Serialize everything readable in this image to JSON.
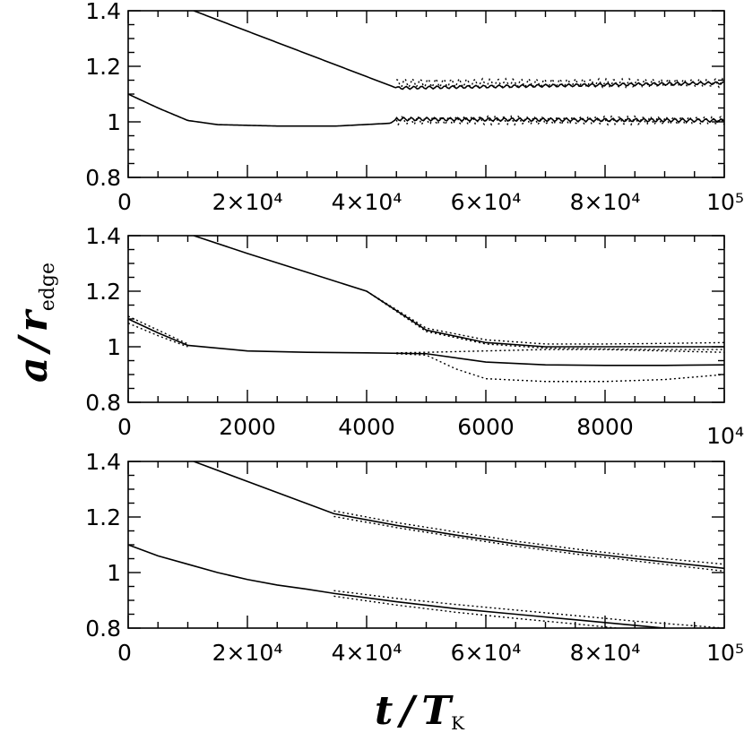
{
  "figure": {
    "ylabel_main": "a",
    "ylabel_slash": "/",
    "ylabel_var": "r",
    "ylabel_sub": "edge",
    "xlabel_main": "t",
    "xlabel_slash": "/",
    "xlabel_var": "T",
    "xlabel_sub": "K"
  },
  "chart_data": [
    {
      "type": "line",
      "xlim": [
        0,
        100000
      ],
      "ylim": [
        0.8,
        1.4
      ],
      "x_ticks": [
        {
          "value": 0,
          "label": "0"
        },
        {
          "value": 20000,
          "label": "2×10⁴"
        },
        {
          "value": 40000,
          "label": "4×10⁴"
        },
        {
          "value": 60000,
          "label": "6×10⁴"
        },
        {
          "value": 80000,
          "label": "8×10⁴"
        },
        {
          "value": 100000,
          "label": "10⁵"
        }
      ],
      "y_ticks": [
        {
          "value": 0.8,
          "label": "0.8"
        },
        {
          "value": 1.0,
          "label": "1"
        },
        {
          "value": 1.2,
          "label": "1.2"
        },
        {
          "value": 1.4,
          "label": "1.4"
        }
      ],
      "series": [
        {
          "style": "solid",
          "x": [
            11000,
            45000,
            100000
          ],
          "y": [
            1.4,
            1.122,
            1.14
          ],
          "oscillate_from": 45000,
          "amplitude": 0.005
        },
        {
          "style": "dotted",
          "x": [
            45000,
            100000
          ],
          "y": [
            1.14,
            1.14
          ],
          "oscillate_from": 45000,
          "amplitude": 0.015
        },
        {
          "style": "solid",
          "x": [
            0,
            5000,
            10000,
            15000,
            25000,
            35000,
            44000,
            45000,
            100000
          ],
          "y": [
            1.1,
            1.05,
            1.005,
            0.99,
            0.985,
            0.985,
            0.995,
            1.01,
            1.005
          ],
          "oscillate_from": 45000,
          "amplitude": 0.006
        },
        {
          "style": "dotted",
          "x": [
            45000,
            100000
          ],
          "y": [
            1.005,
            1.005
          ],
          "oscillate_from": 45000,
          "amplitude": 0.015
        }
      ]
    },
    {
      "type": "line",
      "xlim": [
        0,
        10000
      ],
      "ylim": [
        0.8,
        1.4
      ],
      "x_ticks": [
        {
          "value": 0,
          "label": "0"
        },
        {
          "value": 2000,
          "label": "2000"
        },
        {
          "value": 4000,
          "label": "4000"
        },
        {
          "value": 6000,
          "label": "6000"
        },
        {
          "value": 8000,
          "label": "8000"
        }
      ],
      "x_axis_multiplier": "10⁴",
      "y_ticks": [
        {
          "value": 0.8,
          "label": "0.8"
        },
        {
          "value": 1.0,
          "label": "1"
        },
        {
          "value": 1.2,
          "label": "1.2"
        },
        {
          "value": 1.4,
          "label": "1.4"
        }
      ],
      "series": [
        {
          "style": "solid",
          "x": [
            1100,
            2000,
            3000,
            4000,
            5000,
            6000,
            7000,
            8000,
            9000,
            10000
          ],
          "y": [
            1.4,
            1.336,
            1.268,
            1.2,
            1.06,
            1.015,
            1.0,
            1.0,
            1.0,
            1.0
          ]
        },
        {
          "style": "dotted",
          "x": [
            4000,
            5000,
            6000,
            7000,
            8000,
            9000,
            10000
          ],
          "y": [
            1.2,
            1.067,
            1.025,
            1.01,
            1.01,
            1.012,
            1.015
          ]
        },
        {
          "style": "dotted",
          "x": [
            4000,
            5000,
            6000,
            7000,
            8000,
            9000,
            10000
          ],
          "y": [
            1.2,
            1.055,
            1.01,
            0.995,
            0.992,
            0.99,
            0.99
          ]
        },
        {
          "style": "solid",
          "x": [
            0,
            500,
            1000,
            2000,
            3000,
            4000,
            5000,
            6000,
            7000,
            8000,
            9000,
            10000
          ],
          "y": [
            1.1,
            1.05,
            1.005,
            0.985,
            0.98,
            0.978,
            0.975,
            0.945,
            0.935,
            0.933,
            0.933,
            0.935
          ]
        },
        {
          "style": "dotted",
          "x": [
            0,
            500,
            1000
          ],
          "y": [
            1.11,
            1.06,
            1.01
          ]
        },
        {
          "style": "dotted",
          "x": [
            0,
            500,
            1000
          ],
          "y": [
            1.085,
            1.04,
            1.0
          ]
        },
        {
          "style": "dotted",
          "x": [
            4500,
            5000,
            6000,
            7000,
            8000,
            9000,
            10000
          ],
          "y": [
            0.978,
            0.98,
            0.985,
            0.99,
            0.99,
            0.985,
            0.98
          ]
        },
        {
          "style": "dotted",
          "x": [
            4500,
            5000,
            5500,
            6000,
            7000,
            8000,
            9000,
            10000
          ],
          "y": [
            0.975,
            0.97,
            0.92,
            0.885,
            0.875,
            0.875,
            0.882,
            0.9
          ]
        }
      ]
    },
    {
      "type": "line",
      "xlim": [
        0,
        100000
      ],
      "ylim": [
        0.8,
        1.4
      ],
      "x_ticks": [
        {
          "value": 0,
          "label": "0"
        },
        {
          "value": 20000,
          "label": "2×10⁴"
        },
        {
          "value": 40000,
          "label": "4×10⁴"
        },
        {
          "value": 60000,
          "label": "6×10⁴"
        },
        {
          "value": 80000,
          "label": "8×10⁴"
        },
        {
          "value": 100000,
          "label": "10⁵"
        }
      ],
      "y_ticks": [
        {
          "value": 0.8,
          "label": "0.8"
        },
        {
          "value": 1.0,
          "label": "1"
        },
        {
          "value": 1.2,
          "label": "1.2"
        },
        {
          "value": 1.4,
          "label": "1.4"
        }
      ],
      "series": [
        {
          "style": "solid",
          "x": [
            11000,
            34500,
            45000,
            55000,
            65000,
            75000,
            85000,
            100000
          ],
          "y": [
            1.4,
            1.212,
            1.17,
            1.135,
            1.103,
            1.075,
            1.05,
            1.015
          ]
        },
        {
          "style": "dotted",
          "x": [
            34500,
            45000,
            55000,
            65000,
            75000,
            85000,
            100000
          ],
          "y": [
            1.222,
            1.18,
            1.146,
            1.113,
            1.085,
            1.06,
            1.03
          ]
        },
        {
          "style": "dotted",
          "x": [
            34500,
            45000,
            55000,
            65000,
            75000,
            85000,
            100000
          ],
          "y": [
            1.202,
            1.162,
            1.128,
            1.095,
            1.067,
            1.042,
            1.005
          ]
        },
        {
          "style": "solid",
          "x": [
            0,
            5000,
            10000,
            15000,
            20000,
            25000,
            30000,
            34500,
            45000,
            55000,
            65000,
            75000,
            85000,
            90000
          ],
          "y": [
            1.1,
            1.06,
            1.03,
            1.0,
            0.975,
            0.955,
            0.94,
            0.925,
            0.895,
            0.87,
            0.85,
            0.83,
            0.81,
            0.8
          ]
        },
        {
          "style": "dotted",
          "x": [
            34500,
            45000,
            55000,
            65000,
            75000,
            85000,
            100000
          ],
          "y": [
            0.935,
            0.907,
            0.885,
            0.865,
            0.845,
            0.825,
            0.8
          ]
        },
        {
          "style": "dotted",
          "x": [
            34500,
            45000,
            55000,
            65000,
            75000,
            82000
          ],
          "y": [
            0.915,
            0.883,
            0.857,
            0.835,
            0.815,
            0.8
          ]
        }
      ]
    }
  ]
}
